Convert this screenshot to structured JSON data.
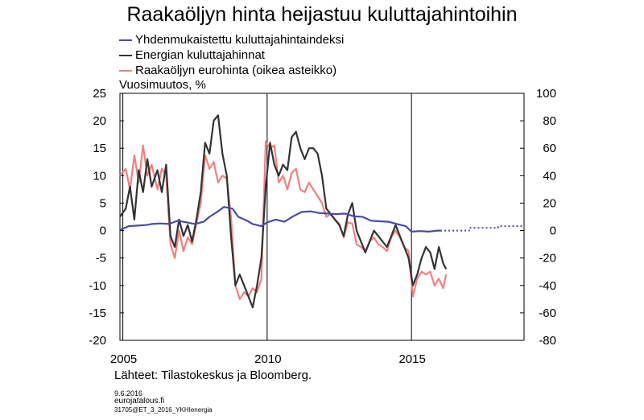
{
  "title": "Raakaöljyn hinta heijastuu kuluttajahintoihin",
  "legend": [
    {
      "label": "Yhdenmukaistettu kuluttajahintaindeksi",
      "color": "#4a4aa8"
    },
    {
      "label": "Energian kuluttajahinnat",
      "color": "#333333"
    },
    {
      "label": "Raakaöljyn eurohinta (oikea asteikko)",
      "color": "#f08080"
    }
  ],
  "ylabel": "Vuosimuutos, %",
  "source": "Lähteet: Tilastokeskus ja Bloomberg.",
  "footer": {
    "date": "9.6.2016",
    "site": "eurojatalous.fi",
    "code": "31705@ET_3_2016_YKHIenergia"
  },
  "chart_data": {
    "type": "line",
    "title": "Raakaöljyn hinta heijastuu kuluttajahintoihin",
    "ylabel": "Vuosimuutos, %",
    "xlim": [
      2004.9,
      2018.9
    ],
    "ylim_left": [
      -20,
      25
    ],
    "ylim_right": [
      -80,
      100
    ],
    "left_ticks": [
      "25",
      "20",
      "15",
      "10",
      "5",
      "0",
      "-5",
      "-10",
      "-15",
      "-20"
    ],
    "right_ticks": [
      "100",
      "80",
      "60",
      "40",
      "20",
      "0",
      "-20",
      "-40",
      "-60",
      "-80"
    ],
    "x_ticks": [
      "2005",
      "2010",
      "2015"
    ],
    "vlines": [
      2005,
      2010,
      2015
    ],
    "grid": false,
    "legend_position": "top-left",
    "series": [
      {
        "name": "Yhdenmukaistettu kuluttajahintaindeksi",
        "axis": "left",
        "color": "#4a4aa8",
        "x": [
          2004.9,
          2005.2,
          2005.5,
          2005.8,
          2006.0,
          2006.3,
          2006.6,
          2006.9,
          2007.2,
          2007.5,
          2007.8,
          2008.0,
          2008.3,
          2008.5,
          2008.8,
          2009.0,
          2009.3,
          2009.5,
          2009.8,
          2010.0,
          2010.3,
          2010.6,
          2010.9,
          2011.2,
          2011.5,
          2011.8,
          2012.1,
          2012.4,
          2012.7,
          2013.0,
          2013.3,
          2013.6,
          2013.9,
          2014.2,
          2014.5,
          2014.8,
          2015.0,
          2015.3,
          2015.6,
          2015.9,
          2016.0
        ],
        "y": [
          0.1,
          0.8,
          0.9,
          1.0,
          1.2,
          1.3,
          1.2,
          1.8,
          1.5,
          1.2,
          1.6,
          2.5,
          3.5,
          4.3,
          4.0,
          2.5,
          1.8,
          1.2,
          0.8,
          1.5,
          2.0,
          1.6,
          2.6,
          3.4,
          3.5,
          3.2,
          3.1,
          3.0,
          3.1,
          2.6,
          2.5,
          1.8,
          1.7,
          1.6,
          1.2,
          0.8,
          -0.2,
          -0.1,
          -0.2,
          0.0,
          0.0
        ]
      },
      {
        "name": "Energian kuluttajahinnat",
        "axis": "left",
        "color": "#333333",
        "x": [
          2004.9,
          2005.1,
          2005.25,
          2005.4,
          2005.55,
          2005.7,
          2005.85,
          2006.0,
          2006.2,
          2006.35,
          2006.5,
          2006.65,
          2006.8,
          2006.95,
          2007.1,
          2007.25,
          2007.4,
          2007.55,
          2007.7,
          2007.85,
          2008.0,
          2008.15,
          2008.3,
          2008.45,
          2008.6,
          2008.75,
          2008.9,
          2009.05,
          2009.2,
          2009.35,
          2009.5,
          2009.65,
          2009.8,
          2009.95,
          2010.1,
          2010.25,
          2010.4,
          2010.55,
          2010.7,
          2010.85,
          2011.0,
          2011.15,
          2011.3,
          2011.45,
          2011.6,
          2011.75,
          2011.9,
          2012.05,
          2012.2,
          2012.35,
          2012.5,
          2012.65,
          2012.8,
          2012.95,
          2013.1,
          2013.25,
          2013.4,
          2013.55,
          2013.7,
          2013.85,
          2014.0,
          2014.15,
          2014.3,
          2014.45,
          2014.6,
          2014.75,
          2014.9,
          2015.05,
          2015.2,
          2015.35,
          2015.5,
          2015.65,
          2015.8,
          2015.95,
          2016.1,
          2016.2
        ],
        "y": [
          2.5,
          4,
          8,
          2,
          11,
          7,
          13,
          8,
          11,
          7,
          12,
          -1,
          -3,
          2,
          -1,
          1,
          -2,
          2,
          7,
          16,
          14,
          20,
          21,
          14,
          10,
          -1,
          -10,
          -8,
          -10,
          -12,
          -14,
          -10,
          -5,
          8,
          16,
          12,
          10,
          12,
          11,
          17,
          18,
          15,
          13,
          15,
          15,
          14,
          10,
          4,
          3,
          2,
          1,
          -1,
          3,
          5,
          0,
          -2,
          -4,
          -2,
          0,
          -1,
          -2,
          -3,
          -1,
          1,
          -1,
          -3,
          -5,
          -10,
          -8,
          -5,
          -3,
          -4,
          -7,
          -3,
          -6,
          -7
        ]
      },
      {
        "name": "Raakaöljyn eurohinta (oikea asteikko)",
        "axis": "right",
        "color": "#f08080",
        "x": [
          2004.9,
          2005.1,
          2005.25,
          2005.4,
          2005.55,
          2005.7,
          2005.85,
          2006.0,
          2006.2,
          2006.35,
          2006.5,
          2006.65,
          2006.8,
          2006.95,
          2007.1,
          2007.25,
          2007.4,
          2007.55,
          2007.7,
          2007.85,
          2008.0,
          2008.15,
          2008.3,
          2008.45,
          2008.6,
          2008.75,
          2008.9,
          2009.05,
          2009.2,
          2009.35,
          2009.5,
          2009.65,
          2009.8,
          2009.95,
          2010.1,
          2010.25,
          2010.4,
          2010.55,
          2010.7,
          2010.85,
          2011.0,
          2011.15,
          2011.3,
          2011.45,
          2011.6,
          2011.75,
          2011.9,
          2012.05,
          2012.2,
          2012.35,
          2012.5,
          2012.65,
          2012.8,
          2012.95,
          2013.1,
          2013.25,
          2013.4,
          2013.55,
          2013.7,
          2013.85,
          2014.0,
          2014.15,
          2014.3,
          2014.45,
          2014.6,
          2014.75,
          2014.9,
          2015.05,
          2015.2,
          2015.35,
          2015.5,
          2015.65,
          2015.8,
          2015.95,
          2016.1,
          2016.2
        ],
        "y": [
          40,
          45,
          30,
          55,
          35,
          62,
          40,
          48,
          30,
          45,
          40,
          -10,
          -20,
          0,
          -15,
          -5,
          -10,
          5,
          20,
          55,
          45,
          50,
          35,
          40,
          38,
          10,
          -40,
          -50,
          -45,
          -48,
          -42,
          -45,
          -35,
          65,
          60,
          62,
          35,
          40,
          30,
          42,
          45,
          30,
          28,
          35,
          30,
          25,
          20,
          10,
          12,
          8,
          5,
          -5,
          6,
          5,
          -10,
          -12,
          -15,
          -8,
          -5,
          -10,
          -12,
          -15,
          -5,
          0,
          -5,
          -12,
          -15,
          -48,
          -35,
          -30,
          -32,
          -30,
          -40,
          -35,
          -42,
          -32
        ]
      },
      {
        "name": "",
        "axis": "left",
        "color": "#4a4aa8",
        "style": "dotted",
        "x": [
          2016.0,
          2016.5,
          2017.0,
          2017.0,
          2018.0,
          2018.0,
          2018.9
        ],
        "y": [
          0.0,
          0.0,
          0.0,
          0.5,
          0.5,
          0.8,
          0.8
        ]
      }
    ]
  }
}
